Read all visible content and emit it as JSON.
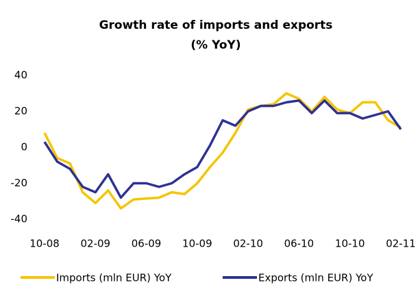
{
  "chart_data": {
    "type": "line",
    "title": "Growth rate of imports and exports",
    "subtitle": "(% YoY)",
    "categories": [
      "10-08",
      null,
      null,
      null,
      "02-09",
      null,
      null,
      null,
      "06-09",
      null,
      null,
      null,
      "10-09",
      null,
      null,
      null,
      "02-10",
      null,
      null,
      null,
      "06-10",
      null,
      null,
      null,
      "10-10",
      null,
      null,
      null,
      "02-11"
    ],
    "series": [
      {
        "name": "Imports (mln EUR) YoY",
        "color": "#f5c400",
        "values": [
          8,
          -6,
          -9,
          -25,
          -31,
          -24,
          -34,
          -29,
          -28.5,
          -28,
          -25,
          -26,
          -20,
          -11,
          -3,
          8,
          21,
          23,
          24,
          30,
          27,
          20,
          28,
          21,
          19,
          25,
          25,
          15,
          11
        ]
      },
      {
        "name": "Exports (mln EUR) YoY",
        "color": "#2e3192",
        "values": [
          3,
          -8,
          -12,
          -22,
          -25,
          -15,
          -28,
          -20,
          -20,
          -22,
          -20,
          -15,
          -11,
          1,
          15,
          12,
          20,
          23,
          23,
          25,
          26,
          19,
          26,
          19,
          19,
          16,
          18,
          20,
          10
        ]
      }
    ],
    "ylim": [
      -40,
      40
    ],
    "yticks": [
      -40,
      -20,
      0,
      20,
      40
    ],
    "grid": false,
    "legend": "bottom"
  }
}
